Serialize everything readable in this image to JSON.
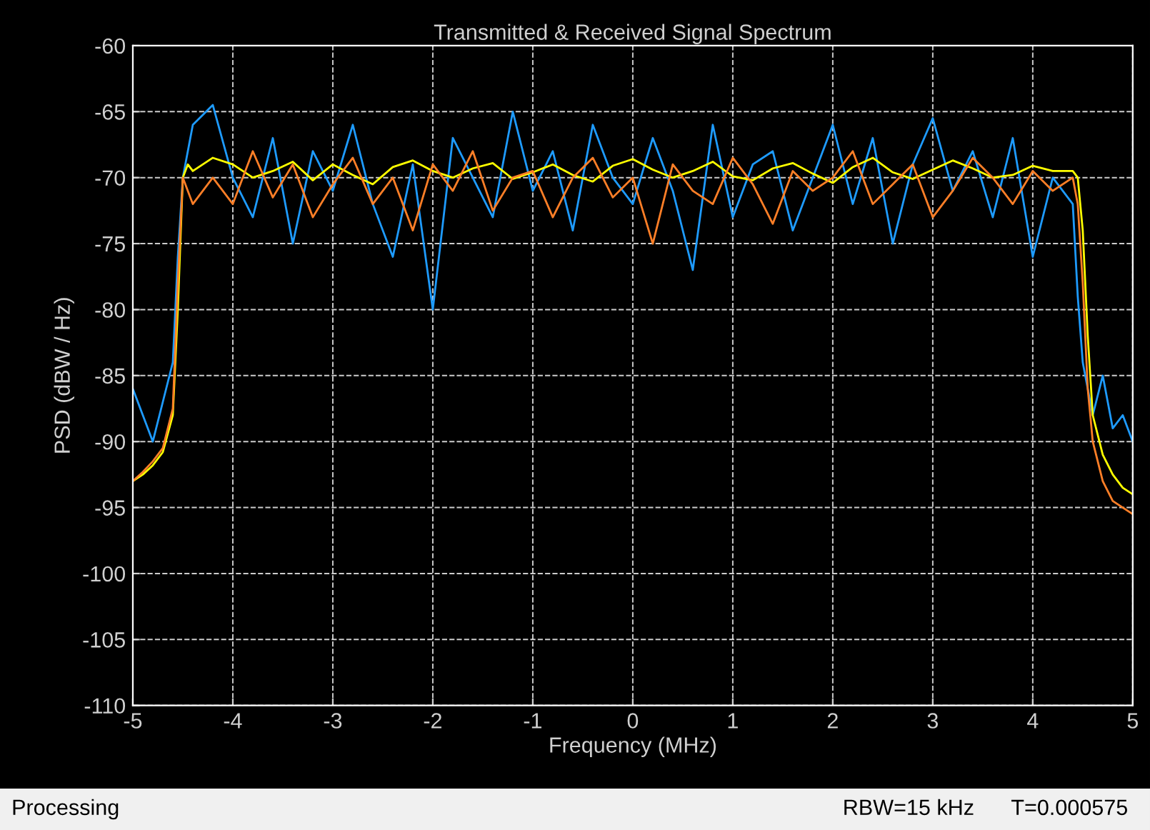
{
  "chart_data": {
    "type": "line",
    "title": "Transmitted & Received Signal Spectrum",
    "xlabel": "Frequency (MHz)",
    "ylabel": "PSD (dBW / Hz)",
    "x": [
      -5,
      -4.9,
      -4.8,
      -4.7,
      -4.6,
      -4.55,
      -4.5,
      -4.45,
      -4.4,
      -4.2,
      -4.0,
      -3.8,
      -3.6,
      -3.4,
      -3.2,
      -3.0,
      -2.8,
      -2.6,
      -2.4,
      -2.2,
      -2.0,
      -1.8,
      -1.6,
      -1.4,
      -1.2,
      -1.0,
      -0.8,
      -0.6,
      -0.4,
      -0.2,
      0,
      0.2,
      0.4,
      0.6,
      0.8,
      1.0,
      1.2,
      1.4,
      1.6,
      1.8,
      2.0,
      2.2,
      2.4,
      2.6,
      2.8,
      3.0,
      3.2,
      3.4,
      3.6,
      3.8,
      4.0,
      4.2,
      4.4,
      4.45,
      4.5,
      4.55,
      4.6,
      4.7,
      4.8,
      4.9,
      5
    ],
    "series": [
      {
        "color": "#1e9bff",
        "values": [
          -86,
          -88,
          -90,
          -87,
          -84,
          -76,
          -70,
          -68,
          -66,
          -64.5,
          -70,
          -73,
          -67,
          -75,
          -68,
          -71,
          -66,
          -72,
          -76,
          -69,
          -80,
          -67,
          -70,
          -73,
          -65,
          -71,
          -68,
          -74,
          -66,
          -70,
          -72,
          -67,
          -71,
          -77,
          -66,
          -73,
          -69,
          -68,
          -74,
          -70,
          -66,
          -72,
          -67,
          -75,
          -69,
          -65.5,
          -71,
          -68,
          -73,
          -67,
          -76,
          -70,
          -72,
          -79,
          -84,
          -86,
          -88,
          -85,
          -89,
          -88,
          -90
        ]
      },
      {
        "color": "#ffff00",
        "values": [
          -93,
          -92.5,
          -91.8,
          -90.8,
          -88,
          -80,
          -70,
          -69,
          -69.5,
          -68.5,
          -69,
          -70,
          -69.5,
          -68.8,
          -70.2,
          -69,
          -69.8,
          -70.5,
          -69.2,
          -68.7,
          -69.5,
          -70,
          -69.3,
          -68.9,
          -70.1,
          -69.6,
          -69,
          -69.8,
          -70.3,
          -69.1,
          -68.6,
          -69.4,
          -70,
          -69.5,
          -68.8,
          -69.9,
          -70.2,
          -69.3,
          -68.9,
          -69.7,
          -70.4,
          -69.2,
          -68.5,
          -69.6,
          -70.1,
          -69.4,
          -68.7,
          -69.3,
          -70,
          -69.8,
          -69.1,
          -69.5,
          -69.5,
          -70,
          -74,
          -82,
          -88,
          -91,
          -92.5,
          -93.5,
          -94
        ]
      },
      {
        "color": "#ff7f27",
        "values": [
          -93,
          -92.3,
          -91.5,
          -90.5,
          -87.5,
          -78,
          -70,
          -71,
          -72,
          -70,
          -72,
          -68,
          -71.5,
          -69,
          -73,
          -70.5,
          -68.5,
          -72,
          -70,
          -74,
          -69,
          -71,
          -68,
          -72.5,
          -70,
          -69.5,
          -73,
          -70,
          -68.5,
          -71.5,
          -70,
          -75,
          -69,
          -71,
          -72,
          -68.5,
          -70.5,
          -73.5,
          -69.5,
          -71,
          -70,
          -68,
          -72,
          -70.5,
          -69,
          -73,
          -71,
          -68.5,
          -70,
          -72,
          -69.5,
          -71,
          -70,
          -72,
          -78,
          -86,
          -90,
          -93,
          -94.5,
          -95,
          -95.5
        ]
      }
    ],
    "xlim": [
      -5,
      5
    ],
    "xticks": [
      -5,
      -4,
      -3,
      -2,
      -1,
      0,
      1,
      2,
      3,
      4,
      5
    ],
    "ylim": [
      -110,
      -60
    ],
    "yticks": [
      -110,
      -105,
      -100,
      -95,
      -90,
      -85,
      -80,
      -75,
      -70,
      -65,
      -60
    ],
    "grid": true,
    "line_style": "solid",
    "marker": "none",
    "annotations": [
      "Processing",
      "RBW=15 kHz",
      "T=0.000575"
    ]
  }
}
